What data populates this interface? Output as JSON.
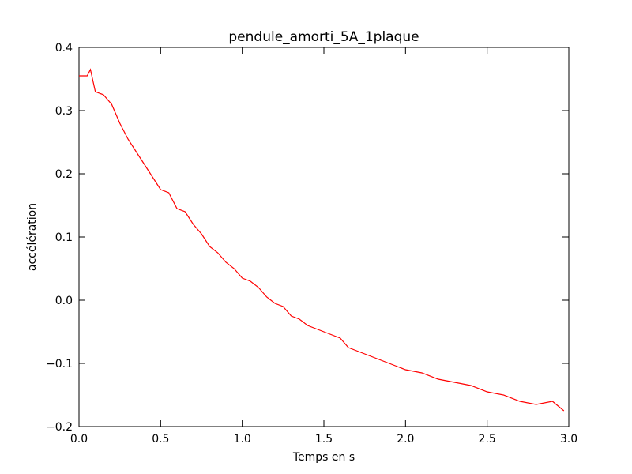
{
  "chart_data": {
    "type": "line",
    "title": "pendule_amorti_5A_1plaque",
    "x_label": "Temps en s",
    "y_label": "accélération",
    "series": [
      {
        "color": "#ff0000",
        "x": [
          0,
          0.05,
          0.07,
          0.1,
          0.15,
          0.2,
          0.25,
          0.3,
          0.35,
          0.4,
          0.45,
          0.5,
          0.55,
          0.6,
          0.65,
          0.7,
          0.75,
          0.8,
          0.85,
          0.9,
          0.95,
          1.0,
          1.05,
          1.1,
          1.15,
          1.2,
          1.25,
          1.3,
          1.35,
          1.4,
          1.45,
          1.5,
          1.55,
          1.6,
          1.65,
          1.7,
          1.75,
          1.8,
          1.85,
          1.9,
          1.95,
          2.0,
          2.1,
          2.2,
          2.3,
          2.4,
          2.5,
          2.6,
          2.7,
          2.8,
          2.9,
          2.97
        ],
        "values": [
          0.355,
          0.355,
          0.365,
          0.33,
          0.325,
          0.31,
          0.28,
          0.255,
          0.235,
          0.215,
          0.195,
          0.175,
          0.17,
          0.145,
          0.14,
          0.12,
          0.105,
          0.085,
          0.075,
          0.06,
          0.05,
          0.035,
          0.03,
          0.02,
          0.005,
          -0.005,
          -0.01,
          -0.025,
          -0.03,
          -0.04,
          -0.045,
          -0.05,
          -0.055,
          -0.06,
          -0.075,
          -0.08,
          -0.085,
          -0.09,
          -0.095,
          -0.1,
          -0.105,
          -0.11,
          -0.115,
          -0.125,
          -0.13,
          -0.135,
          -0.145,
          -0.15,
          -0.16,
          -0.165,
          -0.16,
          -0.175
        ]
      }
    ],
    "xlim": [
      0,
      3
    ],
    "ylim": [
      -0.2,
      0.4
    ],
    "xticks": [
      {
        "value": 0,
        "label": "0.0"
      },
      0.5,
      {
        "value": 1,
        "label": "1.0"
      },
      1.5,
      {
        "value": 2,
        "label": "2.0"
      },
      2.5,
      {
        "value": 3,
        "label": "3.0"
      }
    ],
    "yticks": [
      {
        "value": -0.2,
        "label": "−0.2"
      },
      {
        "value": -0.1,
        "label": "−0.1"
      },
      {
        "value": 0,
        "label": "0.0"
      },
      0.1,
      0.2,
      0.3,
      0.4
    ],
    "grid": false
  }
}
